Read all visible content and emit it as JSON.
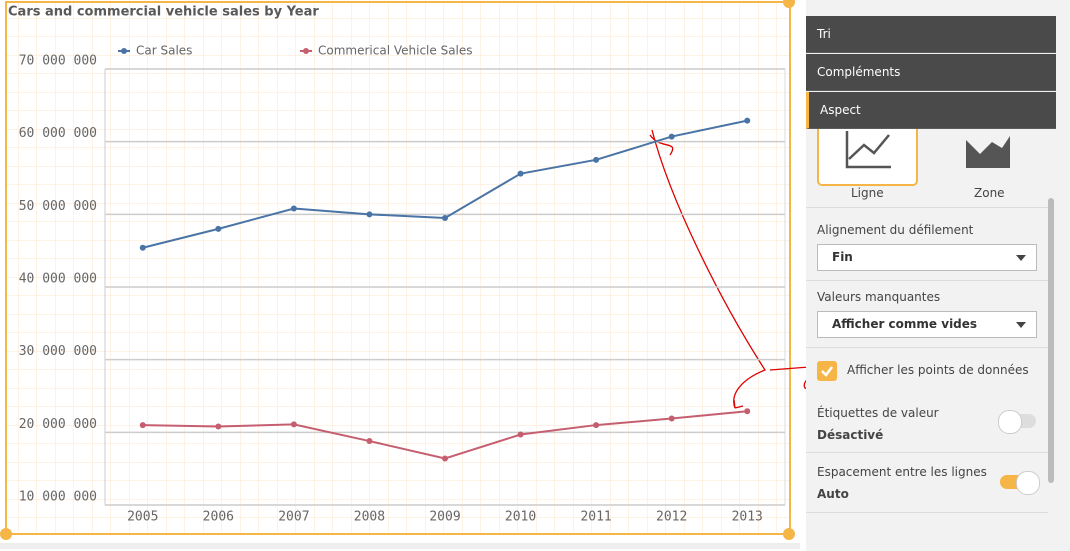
{
  "chart_data": {
    "type": "line",
    "title": "Cars and commercial vehicle sales by Year",
    "categories": [
      "2005",
      "2006",
      "2007",
      "2008",
      "2009",
      "2010",
      "2011",
      "2012",
      "2013"
    ],
    "series": [
      {
        "name": "Car Sales",
        "color": "#4a74a5",
        "values": [
          45400000,
          48000000,
          50800000,
          50000000,
          49500000,
          55600000,
          57500000,
          60700000,
          62900000
        ]
      },
      {
        "name": "Commerical Vehicle Sales",
        "color": "#c55f70",
        "values": [
          21000000,
          20800000,
          21100000,
          18800000,
          16400000,
          19700000,
          21000000,
          21900000,
          22900000
        ]
      }
    ],
    "ylim": [
      10000000,
      70000000
    ],
    "yticks": [
      {
        "value": 10000000,
        "label": "10 000 000"
      },
      {
        "value": 20000000,
        "label": "20 000 000"
      },
      {
        "value": 30000000,
        "label": "30 000 000"
      },
      {
        "value": 40000000,
        "label": "40 000 000"
      },
      {
        "value": 50000000,
        "label": "50 000 000"
      },
      {
        "value": 60000000,
        "label": "60 000 000"
      },
      {
        "value": 70000000,
        "label": "70 000 000"
      }
    ],
    "grid": true,
    "legend": "top"
  },
  "panel": {
    "tabs": [
      "Tri",
      "Compléments",
      "Aspect"
    ],
    "chart_types": [
      "Ligne",
      "Zone"
    ],
    "scroll_alignment": {
      "label": "Alignement du défilement",
      "value": "Fin"
    },
    "missing_values": {
      "label": "Valeurs manquantes",
      "value": "Afficher comme vides"
    },
    "show_points": "Afficher les points de données",
    "value_labels": {
      "label": "Étiquettes de valeur",
      "value": "Désactivé"
    },
    "line_spacing": {
      "label": "Espacement entre les lignes",
      "value": "Auto"
    }
  }
}
